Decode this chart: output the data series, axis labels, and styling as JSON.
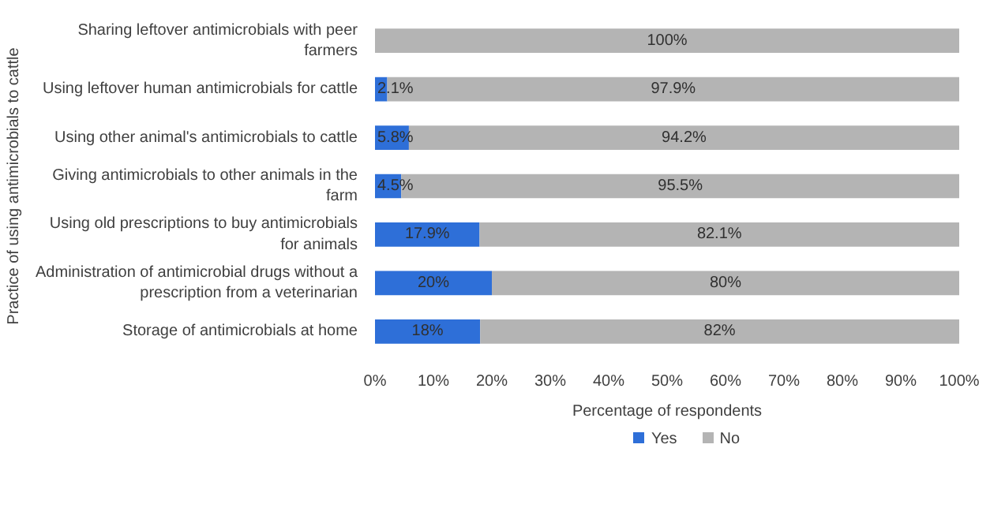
{
  "chart_data": {
    "type": "bar",
    "orientation": "horizontal",
    "stacked": true,
    "xlabel": "Percentage of respondents",
    "ylabel": "Practice of using antimicrobials to cattle",
    "categories": [
      "Sharing leftover antimicrobials with peer farmers",
      "Using leftover human antimicrobials for cattle",
      "Using other animal's antimicrobials to cattle",
      "Giving antimicrobials to other animals in the farm",
      "Using old prescriptions to buy antimicrobials for animals",
      "Administration of antimicrobial drugs without a prescription from a veterinarian",
      "Storage of antimicrobials at home"
    ],
    "series": [
      {
        "name": "Yes",
        "color": "#2e6fd8",
        "values": [
          0,
          2.1,
          5.8,
          4.5,
          17.9,
          20,
          18
        ],
        "value_labels": [
          null,
          "2.1%",
          "5.8%",
          "4.5%",
          "17.9%",
          "20%",
          "18%"
        ]
      },
      {
        "name": "No",
        "color": "#b4b4b4",
        "values": [
          100,
          97.9,
          94.2,
          95.5,
          82.1,
          80,
          82
        ],
        "value_labels": [
          "100%",
          "97.9%",
          "94.2%",
          "95.5%",
          "82.1%",
          "80%",
          "82%"
        ]
      }
    ],
    "xlim": [
      0,
      100
    ],
    "xticks": [
      {
        "value": 0,
        "label": "0%"
      },
      {
        "value": 10,
        "label": "10%"
      },
      {
        "value": 20,
        "label": "20%"
      },
      {
        "value": 30,
        "label": "30%"
      },
      {
        "value": 40,
        "label": "40%"
      },
      {
        "value": 50,
        "label": "50%"
      },
      {
        "value": 60,
        "label": "60%"
      },
      {
        "value": 70,
        "label": "70%"
      },
      {
        "value": 80,
        "label": "80%"
      },
      {
        "value": 90,
        "label": "90%"
      },
      {
        "value": 100,
        "label": "100%"
      }
    ],
    "legend": "bottom",
    "grid": false
  }
}
